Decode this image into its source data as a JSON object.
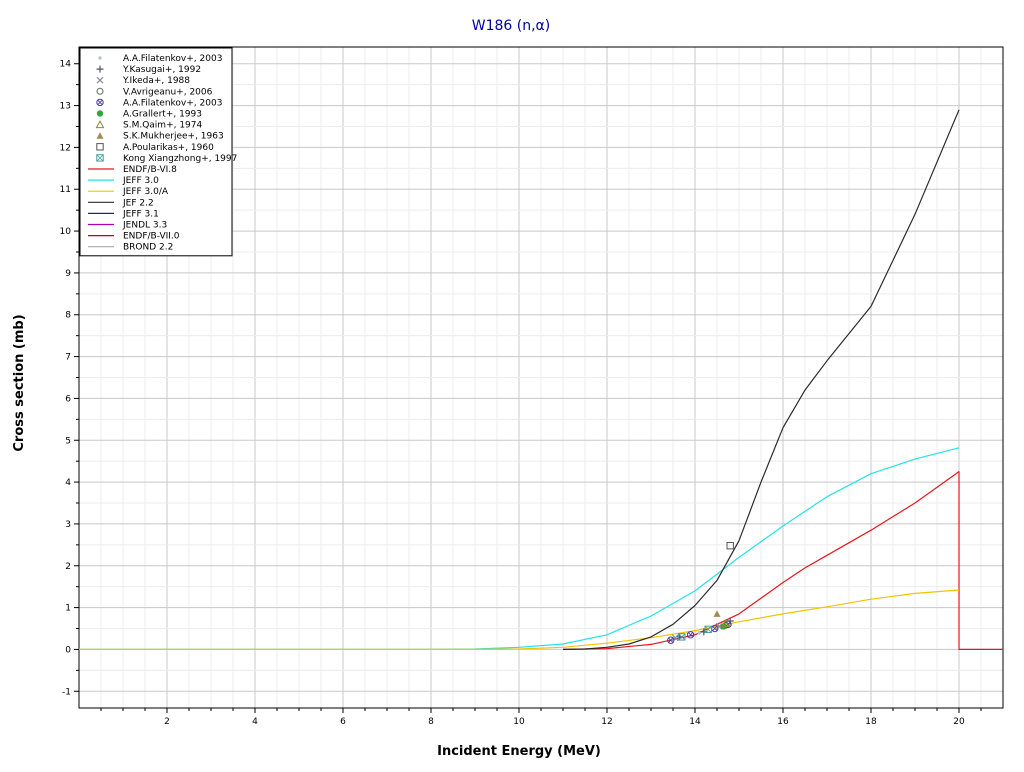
{
  "chart_data": {
    "type": "line",
    "title": "W186 (n,α)",
    "xlabel": "Incident Energy (MeV)",
    "ylabel": "Cross section (mb)",
    "xlim": [
      0,
      21
    ],
    "ylim": [
      -1.4,
      14.4
    ],
    "x_ticks": [
      2,
      4,
      6,
      8,
      10,
      12,
      14,
      16,
      18,
      20
    ],
    "y_ticks": [
      -1,
      0,
      1,
      2,
      3,
      4,
      5,
      6,
      7,
      8,
      9,
      10,
      11,
      12,
      13,
      14
    ],
    "grid": true,
    "legend_position": "top-left",
    "series": [
      {
        "name": "ENDF/B-VI.8",
        "kind": "line",
        "color": "#e8161b",
        "points": [
          [
            11,
            0
          ],
          [
            12,
            0.02
          ],
          [
            13,
            0.12
          ],
          [
            14,
            0.35
          ],
          [
            15,
            0.85
          ],
          [
            16,
            1.6
          ],
          [
            16.5,
            1.95
          ],
          [
            17,
            2.25
          ],
          [
            18,
            2.85
          ],
          [
            19,
            3.5
          ],
          [
            20,
            4.25
          ],
          [
            20,
            0
          ],
          [
            21,
            0
          ]
        ]
      },
      {
        "name": "JEFF 3.0",
        "kind": "line",
        "color": "#22e3ea",
        "points": [
          [
            0,
            0
          ],
          [
            8,
            0
          ],
          [
            9,
            0.01
          ],
          [
            10,
            0.05
          ],
          [
            11,
            0.13
          ],
          [
            12,
            0.35
          ],
          [
            13,
            0.8
          ],
          [
            14,
            1.4
          ],
          [
            15,
            2.2
          ],
          [
            16,
            2.95
          ],
          [
            17,
            3.65
          ],
          [
            18,
            4.2
          ],
          [
            19,
            4.55
          ],
          [
            20,
            4.82
          ]
        ]
      },
      {
        "name": "JEFF 3.0/A",
        "kind": "line",
        "color": "#f2c400",
        "points": [
          [
            0,
            0
          ],
          [
            9,
            0
          ],
          [
            10,
            0.01
          ],
          [
            11,
            0.05
          ],
          [
            12,
            0.15
          ],
          [
            13,
            0.28
          ],
          [
            14,
            0.45
          ],
          [
            15,
            0.66
          ],
          [
            16,
            0.85
          ],
          [
            17,
            1.02
          ],
          [
            18,
            1.2
          ],
          [
            19,
            1.34
          ],
          [
            20,
            1.42
          ]
        ]
      },
      {
        "name": "JEF 2.2",
        "kind": "line",
        "color": "#2b2b2b",
        "points": [
          [
            11,
            0
          ],
          [
            11.5,
            0.01
          ],
          [
            12,
            0.05
          ],
          [
            12.5,
            0.13
          ],
          [
            13,
            0.3
          ],
          [
            13.5,
            0.6
          ],
          [
            14,
            1.05
          ],
          [
            14.5,
            1.65
          ],
          [
            15,
            2.6
          ],
          [
            15.5,
            4.0
          ],
          [
            16,
            5.3
          ],
          [
            16.5,
            6.2
          ],
          [
            17,
            6.9
          ],
          [
            18,
            8.2
          ],
          [
            19,
            10.4
          ],
          [
            20,
            12.9
          ]
        ]
      },
      {
        "name": "JEFF 3.1",
        "kind": "line",
        "color": "#1f1fa8",
        "points": []
      },
      {
        "name": "JENDL 3.3",
        "kind": "line",
        "color": "#b000b0",
        "points": []
      },
      {
        "name": "ENDF/B-VII.0",
        "kind": "line",
        "color": "#c4001a",
        "points": []
      },
      {
        "name": "BROND 2.2",
        "kind": "line",
        "color": "#a8a8a8",
        "points": []
      },
      {
        "name": "A.A.Filatenkov+, 2003",
        "kind": "marker",
        "marker": "dot",
        "color": "#b8c8d8",
        "points": [
          [
            13.5,
            0.25
          ],
          [
            14.1,
            0.4
          ],
          [
            14.6,
            0.52
          ]
        ]
      },
      {
        "name": "Y.Kasugai+, 1992",
        "kind": "marker",
        "marker": "plus",
        "color": "#555566",
        "points": [
          [
            13.65,
            0.3
          ],
          [
            14.2,
            0.42
          ],
          [
            14.8,
            0.68
          ]
        ]
      },
      {
        "name": "Y.Ikeda+, 1988",
        "kind": "marker",
        "marker": "cross",
        "color": "#888899",
        "points": [
          [
            13.55,
            0.28
          ],
          [
            14.55,
            0.55
          ]
        ]
      },
      {
        "name": "V.Avrigeanu+, 2006",
        "kind": "marker",
        "marker": "circle",
        "color": "#556b55",
        "points": [
          [
            14.7,
            0.58
          ]
        ]
      },
      {
        "name": "A.A.Filatenkov+, 2003",
        "kind": "marker",
        "marker": "circle-cross",
        "color": "#4a3aa8",
        "points": [
          [
            13.45,
            0.22
          ],
          [
            13.9,
            0.35
          ],
          [
            14.45,
            0.5
          ],
          [
            14.75,
            0.6
          ]
        ]
      },
      {
        "name": "A.Grallert+, 1993",
        "kind": "marker",
        "marker": "filled-circle",
        "color": "#33a833",
        "points": [
          [
            14.65,
            0.55
          ]
        ]
      },
      {
        "name": "S.M.Qaim+, 1974",
        "kind": "marker",
        "marker": "triangle",
        "color": "#8a8a40",
        "points": [
          [
            14.7,
            0.62
          ]
        ]
      },
      {
        "name": "S.K.Mukherjee+, 1963",
        "kind": "marker",
        "marker": "filled-triangle",
        "color": "#a08a55",
        "points": [
          [
            14.5,
            0.85
          ]
        ]
      },
      {
        "name": "A.Poularikas+, 1960",
        "kind": "marker",
        "marker": "square",
        "color": "#555555",
        "points": [
          [
            14.8,
            2.48
          ]
        ]
      },
      {
        "name": "Kong Xiangzhong+, 1997",
        "kind": "marker",
        "marker": "square-cross",
        "color": "#4a9aa0",
        "points": [
          [
            13.7,
            0.3
          ],
          [
            14.3,
            0.48
          ]
        ]
      }
    ],
    "legend_order": [
      "A.A.Filatenkov+, 2003",
      "Y.Kasugai+, 1992",
      "Y.Ikeda+, 1988",
      "V.Avrigeanu+, 2006",
      "A.A.Filatenkov+, 2003",
      "A.Grallert+, 1993",
      "S.M.Qaim+, 1974",
      "S.K.Mukherjee+, 1963",
      "A.Poularikas+, 1960",
      "Kong Xiangzhong+, 1997",
      "ENDF/B-VI.8",
      "JEFF 3.0",
      "JEFF 3.0/A",
      "JEF 2.2",
      "JEFF 3.1",
      "JENDL 3.3",
      "ENDF/B-VII.0",
      "BROND 2.2"
    ]
  }
}
